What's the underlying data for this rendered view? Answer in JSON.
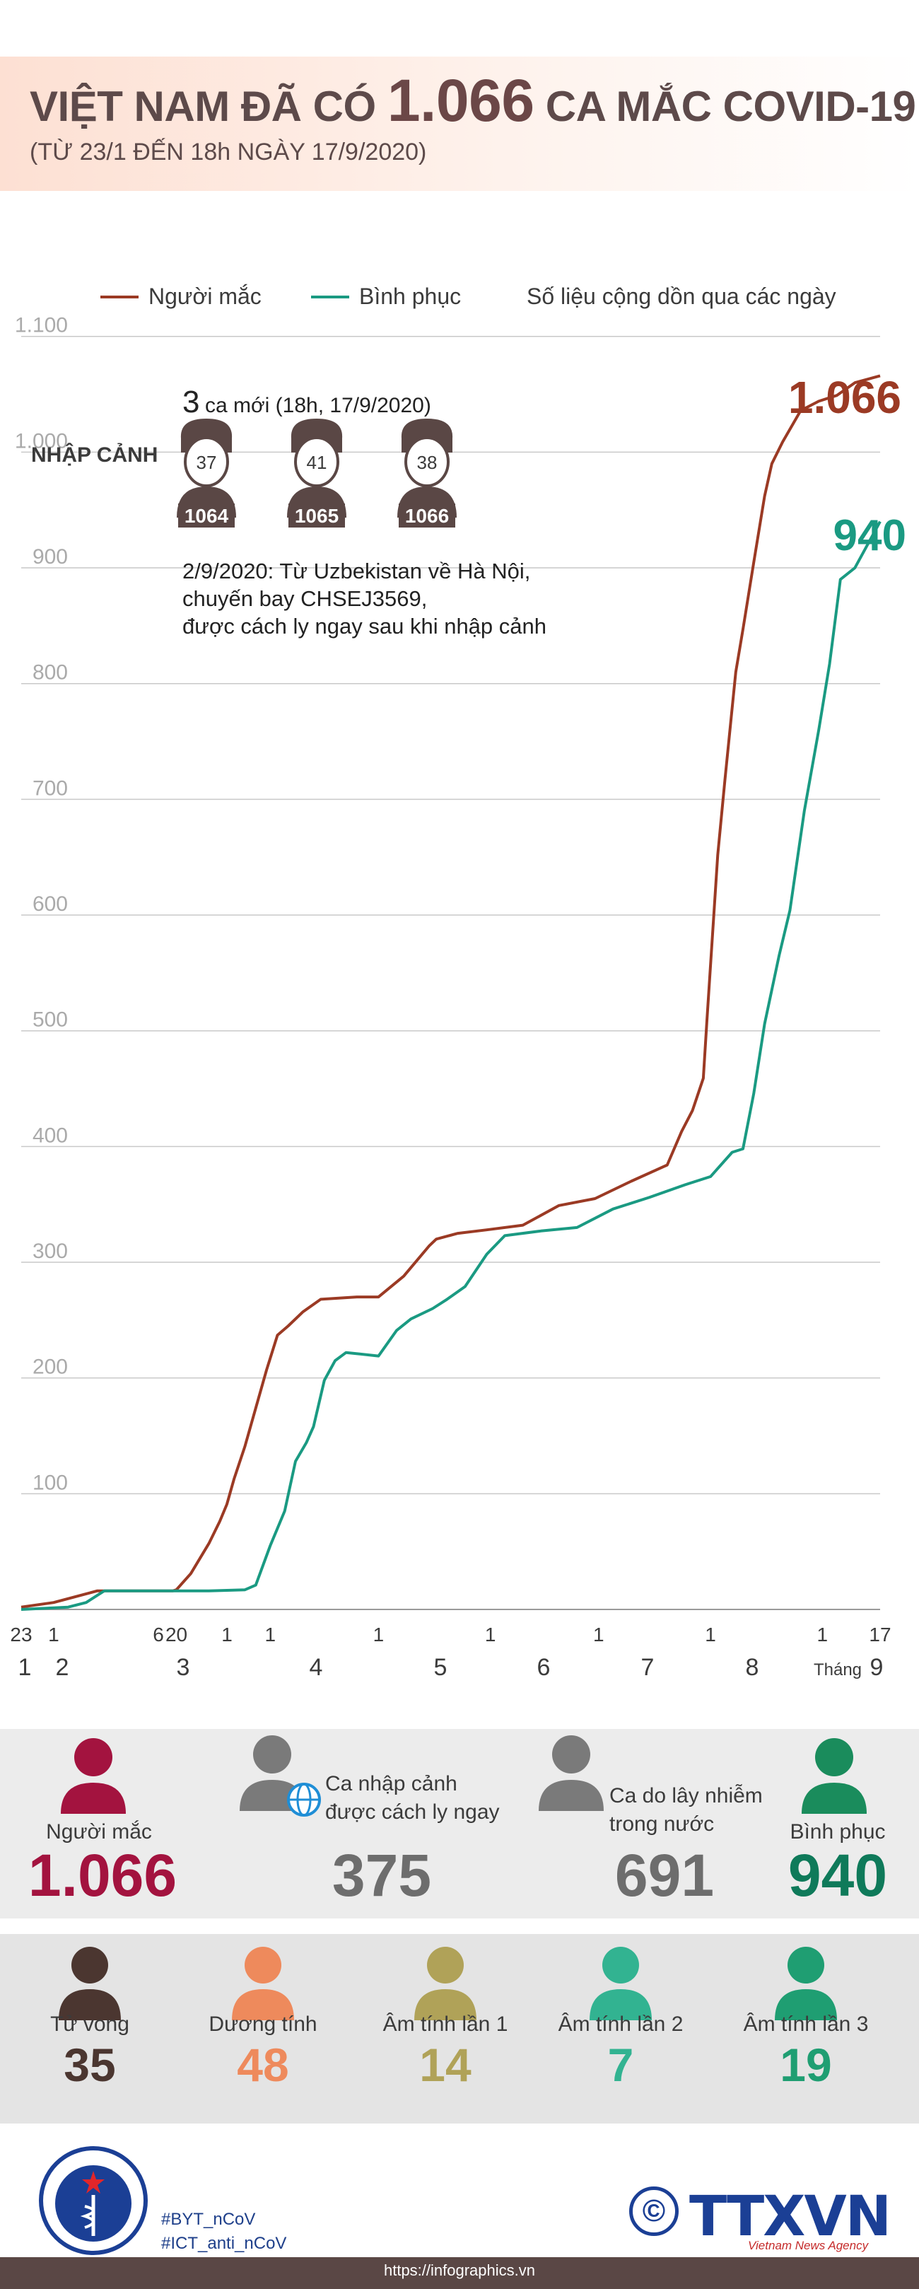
{
  "title": {
    "prefix": "VIỆT NAM ĐÃ CÓ",
    "big": "1.066",
    "suffix": "CA MẮC COVID-19",
    "subtitle": "(TỪ 23/1 ĐẾN 18h NGÀY 17/9/2020)"
  },
  "legend": {
    "items": [
      "Người mắc",
      "Bình phục"
    ],
    "note": "Số liệu cộng dồn qua các ngày"
  },
  "new_cases": {
    "count": "3",
    "label": "ca mới (18h, 17/9/2020)",
    "category": "NHẬP CẢNH",
    "patients": [
      {
        "age": "37",
        "id": "1064"
      },
      {
        "age": "41",
        "id": "1065"
      },
      {
        "age": "38",
        "id": "1066"
      }
    ],
    "desc": [
      "2/9/2020: Từ Uzbekistan về Hà Nội,",
      "chuyến bay CHSEJ3569,",
      "được cách ly ngay sau khi nhập cảnh"
    ]
  },
  "end_labels": {
    "cases": "1.066",
    "recovered": "940"
  },
  "chart_data": {
    "type": "line",
    "ylim": [
      0,
      1200
    ],
    "yticks": [
      "100",
      "200",
      "300",
      "400",
      "500",
      "600",
      "700",
      "800",
      "900",
      "1.000",
      "1.100",
      "1.200"
    ],
    "xlim": [
      "2020-01-23",
      "2020-09-17"
    ],
    "day_ticks": [
      "23",
      "1",
      "1",
      "6",
      "20",
      "1",
      "1",
      "1",
      "1",
      "1",
      "1",
      "1",
      "17"
    ],
    "month_ticks": [
      "1",
      "2",
      "3",
      "4",
      "5",
      "6",
      "7",
      "8",
      "9"
    ],
    "month_label": "Tháng",
    "series": [
      {
        "name": "Người mắc",
        "color": "#9b3a24",
        "points": [
          [
            "2020-01-23",
            2
          ],
          [
            "2020-02-01",
            6
          ],
          [
            "2020-02-13",
            16
          ],
          [
            "2020-03-05",
            16
          ],
          [
            "2020-03-06",
            17
          ],
          [
            "2020-03-10",
            31
          ],
          [
            "2020-03-15",
            57
          ],
          [
            "2020-03-18",
            76
          ],
          [
            "2020-03-20",
            91
          ],
          [
            "2020-03-22",
            113
          ],
          [
            "2020-03-25",
            141
          ],
          [
            "2020-03-28",
            174
          ],
          [
            "2020-03-31",
            207
          ],
          [
            "2020-04-03",
            237
          ],
          [
            "2020-04-06",
            245
          ],
          [
            "2020-04-10",
            257
          ],
          [
            "2020-04-15",
            268
          ],
          [
            "2020-04-25",
            270
          ],
          [
            "2020-05-01",
            270
          ],
          [
            "2020-05-08",
            288
          ],
          [
            "2020-05-15",
            314
          ],
          [
            "2020-05-17",
            320
          ],
          [
            "2020-05-23",
            325
          ],
          [
            "2020-05-31",
            328
          ],
          [
            "2020-06-10",
            332
          ],
          [
            "2020-06-20",
            349
          ],
          [
            "2020-06-30",
            355
          ],
          [
            "2020-07-10",
            370
          ],
          [
            "2020-07-20",
            384
          ],
          [
            "2020-07-24",
            413
          ],
          [
            "2020-07-27",
            431
          ],
          [
            "2020-07-30",
            459
          ],
          [
            "2020-07-31",
            509
          ],
          [
            "2020-08-03",
            652
          ],
          [
            "2020-08-05",
            717
          ],
          [
            "2020-08-08",
            810
          ],
          [
            "2020-08-10",
            847
          ],
          [
            "2020-08-13",
            905
          ],
          [
            "2020-08-16",
            962
          ],
          [
            "2020-08-18",
            990
          ],
          [
            "2020-08-21",
            1009
          ],
          [
            "2020-08-26",
            1036
          ],
          [
            "2020-08-31",
            1044
          ],
          [
            "2020-09-05",
            1049
          ],
          [
            "2020-09-10",
            1060
          ],
          [
            "2020-09-17",
            1066
          ]
        ]
      },
      {
        "name": "Bình phục",
        "color": "#1a9a82",
        "points": [
          [
            "2020-01-23",
            0
          ],
          [
            "2020-02-05",
            2
          ],
          [
            "2020-02-10",
            6
          ],
          [
            "2020-02-15",
            16
          ],
          [
            "2020-03-15",
            16
          ],
          [
            "2020-03-25",
            17
          ],
          [
            "2020-03-28",
            21
          ],
          [
            "2020-04-01",
            55
          ],
          [
            "2020-04-05",
            85
          ],
          [
            "2020-04-08",
            128
          ],
          [
            "2020-04-11",
            144
          ],
          [
            "2020-04-13",
            158
          ],
          [
            "2020-04-16",
            198
          ],
          [
            "2020-04-19",
            215
          ],
          [
            "2020-04-22",
            222
          ],
          [
            "2020-05-01",
            219
          ],
          [
            "2020-05-06",
            241
          ],
          [
            "2020-05-10",
            251
          ],
          [
            "2020-05-16",
            260
          ],
          [
            "2020-05-20",
            268
          ],
          [
            "2020-05-25",
            279
          ],
          [
            "2020-05-31",
            307
          ],
          [
            "2020-06-05",
            323
          ],
          [
            "2020-06-15",
            327
          ],
          [
            "2020-06-25",
            330
          ],
          [
            "2020-07-05",
            346
          ],
          [
            "2020-07-15",
            356
          ],
          [
            "2020-07-25",
            367
          ],
          [
            "2020-08-01",
            374
          ],
          [
            "2020-08-07",
            395
          ],
          [
            "2020-08-10",
            398
          ],
          [
            "2020-08-13",
            446
          ],
          [
            "2020-08-16",
            506
          ],
          [
            "2020-08-20",
            565
          ],
          [
            "2020-08-23",
            604
          ],
          [
            "2020-08-27",
            690
          ],
          [
            "2020-08-31",
            760
          ],
          [
            "2020-09-03",
            817
          ],
          [
            "2020-09-06",
            890
          ],
          [
            "2020-09-10",
            900
          ],
          [
            "2020-09-17",
            940
          ]
        ]
      }
    ]
  },
  "summary": [
    {
      "label": "Người mắc",
      "value": "1.066",
      "color": "#a3133f"
    },
    {
      "label": "Ca nhập cảnh\nđược cách ly ngay",
      "value": "375",
      "color": "#6d6d6d"
    },
    {
      "label": "Ca do lây nhiễm\ntrong nước",
      "value": "691",
      "color": "#6d6d6d"
    },
    {
      "label": "Bình phục",
      "value": "940",
      "color": "#0f7a5a"
    }
  ],
  "status": [
    {
      "label": "Tử vong",
      "value": "35",
      "color": "#4b3630"
    },
    {
      "label": "Dương tính",
      "value": "48",
      "color": "#ee8a5c"
    },
    {
      "label": "Âm tính lần 1",
      "value": "14",
      "color": "#b0a258"
    },
    {
      "label": "Âm tính lần 2",
      "value": "7",
      "color": "#32b391"
    },
    {
      "label": "Âm tính lần 3",
      "value": "19",
      "color": "#1f9e72"
    }
  ],
  "footer": {
    "logo_text": "BỘ Y TẾ",
    "logo_sub": "MINISTRY OF HEALTH",
    "tags": [
      "#BYT_nCoV",
      "#ICT_anti_nCoV"
    ],
    "copyright": "©",
    "agency": "TTXVN",
    "agency_sub": "Vietnam News Agency",
    "url": "https://infographics.vn"
  }
}
